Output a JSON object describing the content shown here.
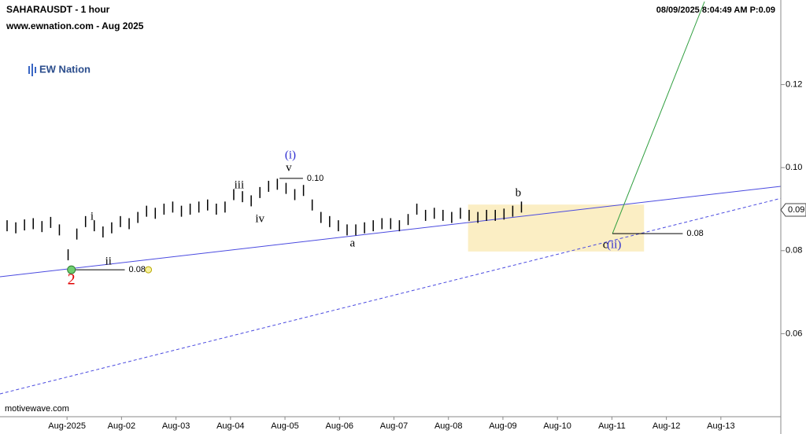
{
  "chart_data": {
    "type": "ohlc",
    "title": "SAHARAUSDT - 1 hour",
    "subtitle": "www.ewnation.com  - Aug 2025",
    "timestamp": "08/09/2025 8:04:49 AM  P:0.09",
    "logo": "EW Nation",
    "footer": "motivewave.com",
    "xlim": [
      -0.23,
      14.1
    ],
    "ylim": [
      0.04,
      0.14
    ],
    "xticks": [
      {
        "value": 1,
        "label": "Aug-2025"
      },
      {
        "value": 2,
        "label": "Aug-02"
      },
      {
        "value": 3,
        "label": "Aug-03"
      },
      {
        "value": 4,
        "label": "Aug-04"
      },
      {
        "value": 5,
        "label": "Aug-05"
      },
      {
        "value": 6,
        "label": "Aug-06"
      },
      {
        "value": 7,
        "label": "Aug-07"
      },
      {
        "value": 8,
        "label": "Aug-08"
      },
      {
        "value": 9,
        "label": "Aug-09"
      },
      {
        "value": 10,
        "label": "Aug-10"
      },
      {
        "value": 11,
        "label": "Aug-11"
      },
      {
        "value": 12,
        "label": "Aug-12"
      },
      {
        "value": 13,
        "label": "Aug-13"
      }
    ],
    "yticks": [
      0.06,
      0.08,
      {
        "value": 0.1,
        "label": "0.10"
      },
      0.12
    ],
    "last_price": {
      "value": 0.0898,
      "label": "0.09"
    },
    "color": "#000000",
    "x": [
      -0.1,
      0.06,
      0.22,
      0.38,
      0.54,
      0.7,
      0.86,
      1.02,
      1.18,
      1.34,
      1.5,
      1.66,
      1.82,
      1.98,
      2.14,
      2.3,
      2.46,
      2.62,
      2.78,
      2.94,
      3.1,
      3.26,
      3.42,
      3.58,
      3.74,
      3.9,
      4.06,
      4.22,
      4.38,
      4.54,
      4.7,
      4.86,
      5.02,
      5.18,
      5.34,
      5.5,
      5.66,
      5.82,
      5.98,
      6.14,
      6.3,
      6.46,
      6.62,
      6.78,
      6.94,
      7.1,
      7.26,
      7.42,
      7.58,
      7.74,
      7.9,
      8.06,
      8.22,
      8.38,
      8.54,
      8.7,
      8.86,
      9.02,
      9.18,
      9.34
    ],
    "values": [
      0.086,
      0.0855,
      0.0862,
      0.0865,
      0.0858,
      0.0868,
      0.085,
      0.079,
      0.084,
      0.087,
      0.086,
      0.0845,
      0.0855,
      0.087,
      0.0865,
      0.088,
      0.0895,
      0.089,
      0.09,
      0.0905,
      0.0895,
      0.09,
      0.0905,
      0.091,
      0.09,
      0.0905,
      0.0935,
      0.093,
      0.092,
      0.094,
      0.0955,
      0.096,
      0.095,
      0.0935,
      0.0945,
      0.091,
      0.088,
      0.087,
      0.086,
      0.085,
      0.085,
      0.0855,
      0.086,
      0.0865,
      0.0865,
      0.086,
      0.0875,
      0.09,
      0.0885,
      0.089,
      0.0885,
      0.088,
      0.089,
      0.0885,
      0.088,
      0.0885,
      0.0885,
      0.0888,
      0.0895,
      0.0905
    ],
    "lines": [
      {
        "color": "#4a4ae0",
        "dash": false,
        "x": [
          -0.23,
          14.1
        ],
        "values": [
          0.0737,
          0.0955
        ]
      },
      {
        "color": "#4a4ae0",
        "dash": true,
        "x": [
          -0.23,
          14.1
        ],
        "values": [
          0.0455,
          0.0926
        ]
      },
      {
        "color": "#2e9e3e",
        "dash": false,
        "x": [
          11.01,
          12.7
        ],
        "values": [
          0.0841,
          0.14
        ]
      }
    ],
    "zone": {
      "x": [
        8.36,
        11.59
      ],
      "values": [
        0.0798,
        0.0911
      ],
      "color": "#fbeec4"
    },
    "levels": [
      {
        "x": [
          1.08,
          2.06
        ],
        "value": 0.0754,
        "label": "0.08"
      },
      {
        "x": [
          4.9,
          5.33
        ],
        "value": 0.0974,
        "label": "0.10"
      },
      {
        "x": [
          11.01,
          12.3
        ],
        "value": 0.0841,
        "label": "0.08"
      }
    ],
    "annotations": [
      {
        "text": "2",
        "x": 1.08,
        "y": 0.0728,
        "color": "#e00000"
      },
      {
        "text": "i",
        "x": 1.46,
        "y": 0.0881,
        "color": "#000000"
      },
      {
        "text": "ii",
        "x": 1.76,
        "y": 0.0773,
        "color": "#000000"
      },
      {
        "text": "iii",
        "x": 4.16,
        "y": 0.0957,
        "color": "#000000"
      },
      {
        "text": "iv",
        "x": 4.54,
        "y": 0.0875,
        "color": "#000000"
      },
      {
        "text": "v",
        "x": 5.07,
        "y": 0.0998,
        "color": "#000000"
      },
      {
        "text": "(i)",
        "x": 5.1,
        "y": 0.1029,
        "color": "#2a2ad0"
      },
      {
        "text": "a",
        "x": 6.24,
        "y": 0.0817,
        "color": "#000000"
      },
      {
        "text": "b",
        "x": 9.28,
        "y": 0.0938,
        "color": "#000000"
      },
      {
        "text": "c",
        "x": 10.88,
        "y": 0.0813,
        "color": "#000000"
      },
      {
        "text": "(ii)",
        "x": 11.04,
        "y": 0.0813,
        "color": "#2a2ad0"
      }
    ]
  }
}
